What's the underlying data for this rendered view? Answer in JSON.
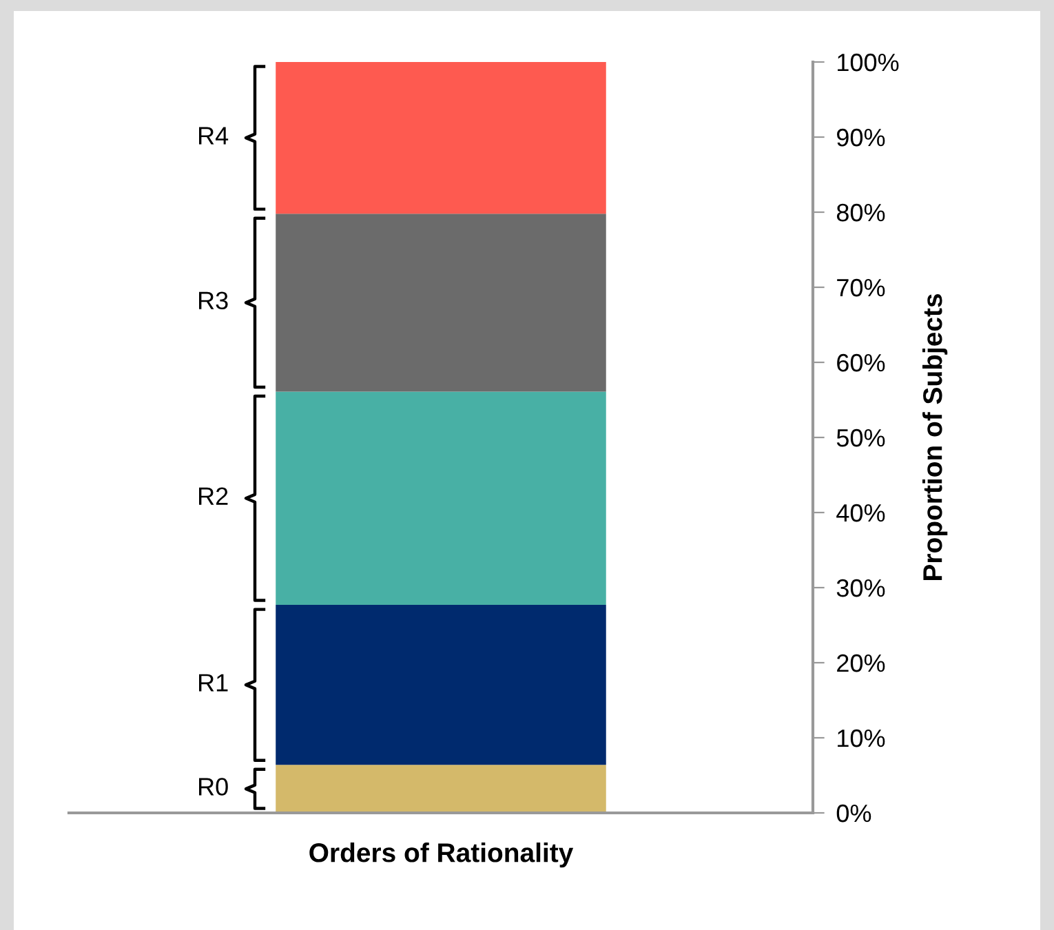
{
  "chart_data": {
    "type": "bar",
    "stacked": true,
    "xlabel": "Orders of Rationality",
    "ylabel": "Proportion of Subjects",
    "categories": [
      null
    ],
    "series": [
      {
        "name": "R0",
        "color": "#d4b96a",
        "values": [
          6.4
        ]
      },
      {
        "name": "R1",
        "color": "#002a6e",
        "values": [
          21.3
        ]
      },
      {
        "name": "R2",
        "color": "#48b0a5",
        "values": [
          28.4
        ]
      },
      {
        "name": "R3",
        "color": "#6b6b6b",
        "values": [
          23.7
        ]
      },
      {
        "name": "R4",
        "color": "#fe5a50",
        "values": [
          20.2
        ]
      }
    ],
    "ylim": [
      0,
      100
    ],
    "yticks": [
      {
        "value": 0,
        "label": "0%"
      },
      {
        "value": 10,
        "label": "10%"
      },
      {
        "value": 20,
        "label": "20%"
      },
      {
        "value": 30,
        "label": "30%"
      },
      {
        "value": 40,
        "label": "40%"
      },
      {
        "value": 50,
        "label": "50%"
      },
      {
        "value": 60,
        "label": "60%"
      },
      {
        "value": 70,
        "label": "70%"
      },
      {
        "value": 80,
        "label": "80%"
      },
      {
        "value": 90,
        "label": "90%"
      },
      {
        "value": 100,
        "label": "100%"
      }
    ],
    "grid": false,
    "legend": false
  }
}
